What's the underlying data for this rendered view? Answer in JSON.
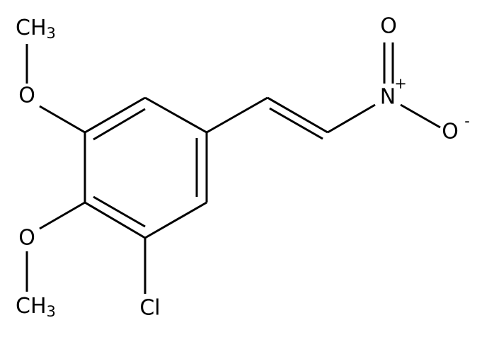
{
  "atoms": [
    {
      "element": "CH",
      "subscript": "3"
    },
    {
      "element": "O"
    },
    {
      "element": "O"
    },
    {
      "element": "CH",
      "subscript": "3"
    },
    {
      "element": "Cl"
    },
    {
      "element": "N",
      "charge": "+"
    },
    {
      "element": "O"
    },
    {
      "element": "O",
      "charge": "-"
    }
  ]
}
